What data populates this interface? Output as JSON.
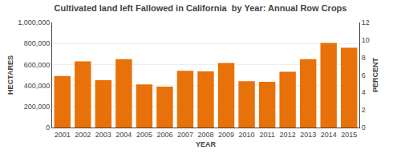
{
  "chart_data": {
    "type": "bar",
    "title": "Cultivated land left Fallowed in California  by Year: Annual Row Crops",
    "xlabel": "YEAR",
    "ylabel": "HECTARES",
    "y2label": "PERCENT",
    "categories": [
      "2001",
      "2002",
      "2003",
      "2004",
      "2005",
      "2006",
      "2007",
      "2008",
      "2009",
      "2010",
      "2011",
      "2012",
      "2013",
      "2014",
      "2015"
    ],
    "values": [
      490000,
      630000,
      450000,
      650000,
      410000,
      390000,
      540000,
      535000,
      615000,
      440000,
      435000,
      530000,
      650000,
      805000,
      760000
    ],
    "color": "#E8710A",
    "ylim": [
      0,
      1000000
    ],
    "yticks": [
      0,
      {
        "value": 200000,
        "label": "200,000"
      },
      {
        "value": 400000,
        "label": "400,000"
      },
      {
        "value": 600000,
        "label": "600,000"
      },
      {
        "value": 800000,
        "label": "800,000"
      },
      {
        "value": 1000000,
        "label": "1,000,000"
      }
    ],
    "y2lim": [
      0,
      12
    ],
    "y2ticks": [
      0,
      2,
      4,
      6,
      8,
      10,
      12
    ],
    "grid": true
  }
}
